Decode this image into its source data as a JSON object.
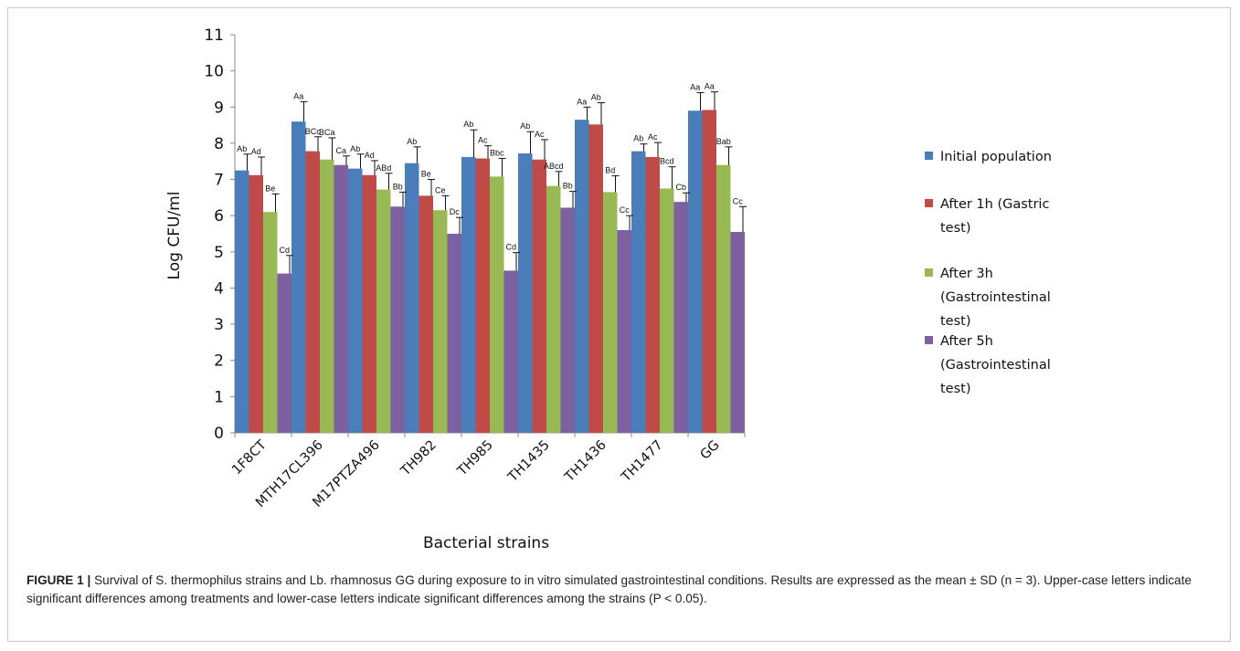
{
  "chart_data": {
    "type": "bar",
    "ylabel": "Log CFU/ml",
    "xlabel": "Bacterial strains",
    "ylim": [
      0,
      11
    ],
    "yticks": [
      0,
      1,
      2,
      3,
      4,
      5,
      6,
      7,
      8,
      9,
      10,
      11
    ],
    "grid": false,
    "legend_position": "right",
    "categories": [
      "1F8CT",
      "MTH17CL396",
      "M17PTZA496",
      "TH982",
      "TH985",
      "TH1435",
      "TH1436",
      "TH1477",
      "GG"
    ],
    "series": [
      {
        "name": "Initial population",
        "color": "#4a7ebb",
        "values": [
          7.25,
          8.6,
          7.3,
          7.45,
          7.62,
          7.72,
          8.65,
          7.78,
          8.9
        ],
        "errors": [
          0.45,
          0.55,
          0.4,
          0.45,
          0.75,
          0.6,
          0.35,
          0.2,
          0.5
        ],
        "labels": [
          "Ab",
          "Aa",
          "Ab",
          "Ab",
          "Ab",
          "Ab",
          "Aa",
          "Ab",
          "Aa"
        ]
      },
      {
        "name": "After 1h (Gastric test)",
        "color": "#be4b48",
        "values": [
          7.12,
          7.78,
          7.12,
          6.55,
          7.58,
          7.55,
          8.52,
          7.62,
          8.92
        ],
        "errors": [
          0.5,
          0.4,
          0.4,
          0.45,
          0.35,
          0.55,
          0.6,
          0.4,
          0.5
        ],
        "labels": [
          "Ad",
          "BCc",
          "Ad",
          "Be",
          "Ac",
          "Ac",
          "Ab",
          "Ac",
          "Aa"
        ]
      },
      {
        "name": "After 3h (Gastrointestinal test)",
        "color": "#98b954",
        "values": [
          6.1,
          7.55,
          6.72,
          6.15,
          7.08,
          6.82,
          6.65,
          6.75,
          7.4
        ],
        "errors": [
          0.5,
          0.6,
          0.45,
          0.4,
          0.5,
          0.4,
          0.45,
          0.6,
          0.5
        ],
        "labels": [
          "Be",
          "BCa",
          "ABd",
          "Ce",
          "Bbc",
          "ABcd",
          "Bd",
          "Bcd",
          "Bab"
        ]
      },
      {
        "name": "After 5h (Gastrointestinal test)",
        "color": "#7d60a0",
        "values": [
          4.4,
          7.4,
          6.25,
          5.5,
          4.48,
          6.22,
          5.6,
          6.38,
          5.55
        ],
        "errors": [
          0.5,
          0.25,
          0.4,
          0.45,
          0.5,
          0.45,
          0.4,
          0.25,
          0.7
        ],
        "labels": [
          "Cd",
          "Ca",
          "Bb",
          "Dc",
          "Cd",
          "Bb",
          "Cc",
          "Cb",
          "Cc"
        ]
      }
    ],
    "legend_lines": [
      [
        "Initial population"
      ],
      [
        "After 1h (Gastric",
        "test)"
      ],
      [
        "After 3h",
        "(Gastrointestinal",
        "test)"
      ],
      [
        "After 5h",
        "(Gastrointestinal",
        "test)"
      ]
    ]
  },
  "caption": {
    "label": "FIGURE 1 |",
    "text": "Survival of S. thermophilus strains and Lb. rhamnosus GG during exposure to in vitro simulated gastrointestinal conditions. Results are expressed as the mean ± SD (n = 3). Upper-case letters indicate significant differences among treatments and lower-case letters indicate significant differences among the strains (P < 0.05)."
  }
}
